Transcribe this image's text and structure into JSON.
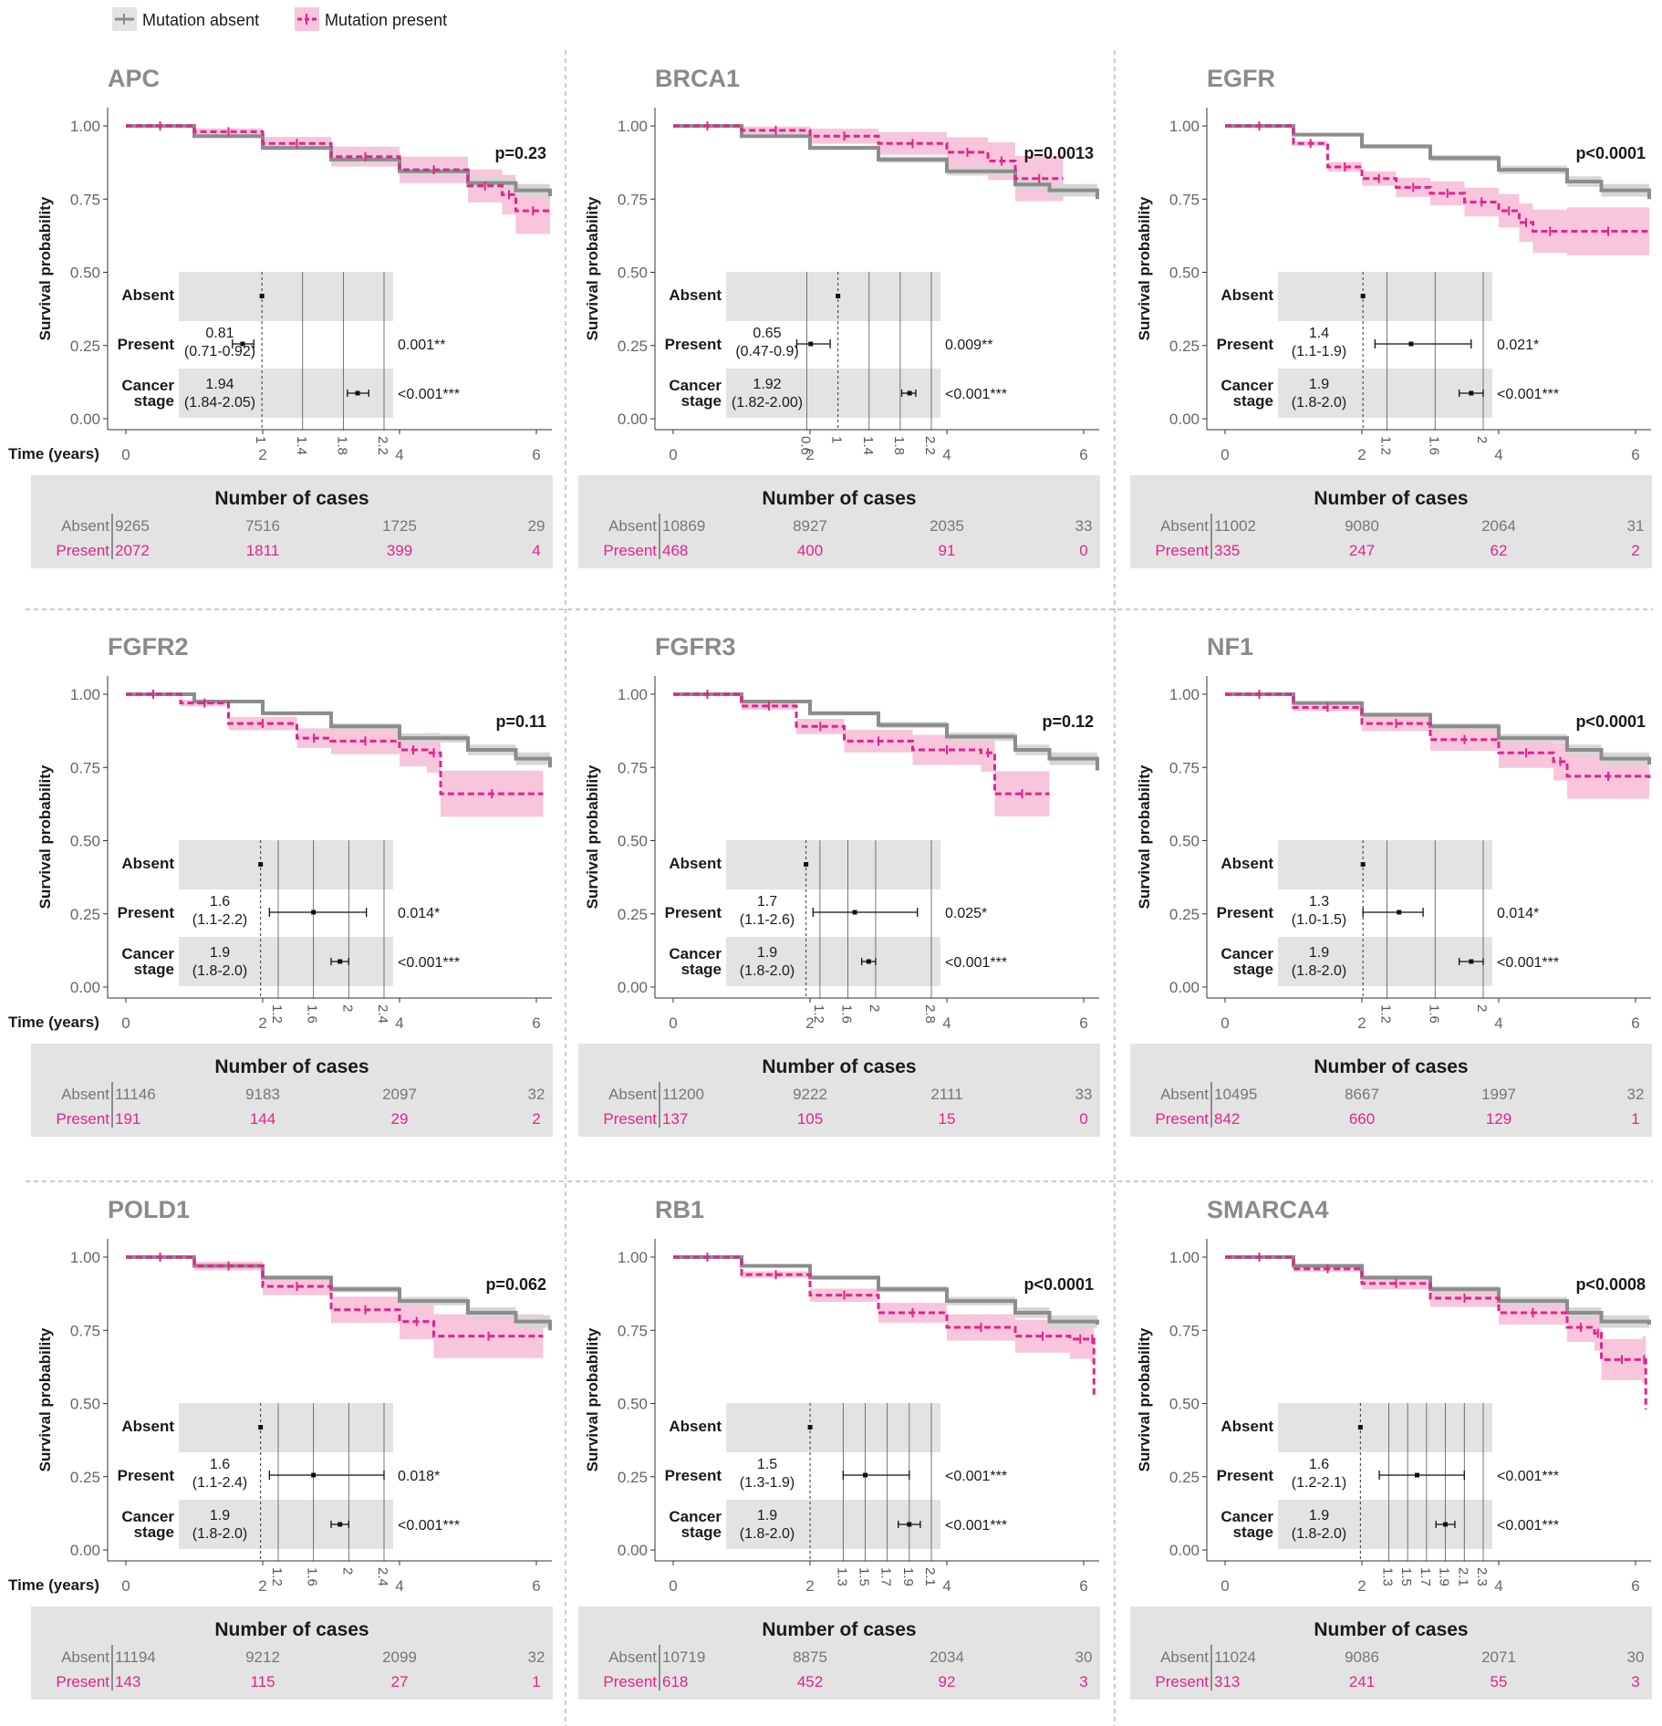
{
  "legend": {
    "absent_label": "Mutation absent",
    "present_label": "Mutation present",
    "absent_color": "#8c8c8c",
    "present_color": "#e0258e"
  },
  "axis": {
    "y_title": "Survival probability",
    "x_title": "Time (years)",
    "y_ticks": [
      "1.00",
      "0.75",
      "0.50",
      "0.25",
      "0.00"
    ],
    "x_ticks": [
      "0",
      "2",
      "4",
      "6"
    ]
  },
  "forest_labels": {
    "absent": "Absent",
    "present": "Present",
    "cancer_line1": "Cancer",
    "cancer_line2": "stage"
  },
  "risk_table": {
    "title": "Number of cases",
    "absent_label": "Absent",
    "present_label": "Present"
  },
  "chart_data": [
    {
      "type": "line",
      "title": "APC",
      "p_value": "p=0.23",
      "xlim": [
        0,
        6.2
      ],
      "ylim": [
        0,
        1
      ],
      "series": [
        {
          "name": "Mutation absent",
          "x": [
            0,
            1,
            2,
            3,
            4,
            5,
            5.7,
            6.2
          ],
          "y": [
            1.0,
            0.965,
            0.925,
            0.885,
            0.845,
            0.805,
            0.78,
            0.76
          ]
        },
        {
          "name": "Mutation present",
          "x": [
            0,
            1,
            2,
            3,
            4,
            5,
            5.5,
            5.7,
            6.2
          ],
          "y": [
            1.0,
            0.98,
            0.94,
            0.895,
            0.85,
            0.795,
            0.765,
            0.71,
            0.7
          ]
        }
      ],
      "forest": {
        "ticks": [
          "1",
          "1.4",
          "1.8",
          "2.2"
        ],
        "present_hr": "0.81",
        "present_ci": "(0.71-0.92)",
        "present_p": "0.001**",
        "stage_hr": "1.94",
        "stage_ci": "(1.84-2.05)",
        "stage_p": "<0.001***"
      },
      "cases": {
        "absent": [
          "9265",
          "7516",
          "1725",
          "29"
        ],
        "present": [
          "2072",
          "1811",
          "399",
          "4"
        ]
      }
    },
    {
      "type": "line",
      "title": "BRCA1",
      "p_value": "p=0.0013",
      "xlim": [
        0,
        6.2
      ],
      "ylim": [
        0,
        1
      ],
      "series": [
        {
          "name": "Mutation absent",
          "x": [
            0,
            1,
            2,
            3,
            4,
            5,
            5.5,
            6.2
          ],
          "y": [
            1.0,
            0.965,
            0.925,
            0.885,
            0.845,
            0.8,
            0.78,
            0.75
          ]
        },
        {
          "name": "Mutation present",
          "x": [
            0,
            1,
            2,
            3,
            4,
            4.6,
            5.0,
            5.7
          ],
          "y": [
            1.0,
            0.985,
            0.965,
            0.94,
            0.91,
            0.88,
            0.82,
            0.82
          ]
        }
      ],
      "forest": {
        "ticks": [
          "0.6",
          "1",
          "1.4",
          "1.8",
          "2.2"
        ],
        "present_hr": "0.65",
        "present_ci": "(0.47-0.9)",
        "present_p": "0.009**",
        "stage_hr": "1.92",
        "stage_ci": "(1.82-2.00)",
        "stage_p": "<0.001***"
      },
      "cases": {
        "absent": [
          "10869",
          "8927",
          "2035",
          "33"
        ],
        "present": [
          "468",
          "400",
          "91",
          "0"
        ]
      }
    },
    {
      "type": "line",
      "title": "EGFR",
      "p_value": "p<0.0001",
      "xlim": [
        0,
        6.2
      ],
      "ylim": [
        0,
        1
      ],
      "series": [
        {
          "name": "Mutation absent",
          "x": [
            0,
            1,
            2,
            3,
            4,
            5,
            5.5,
            6.2
          ],
          "y": [
            1.0,
            0.97,
            0.93,
            0.89,
            0.85,
            0.81,
            0.78,
            0.75
          ]
        },
        {
          "name": "Mutation present",
          "x": [
            0,
            1,
            1.5,
            2,
            2.5,
            3,
            3.5,
            4,
            4.3,
            4.5,
            5,
            6.2
          ],
          "y": [
            1.0,
            0.94,
            0.86,
            0.82,
            0.79,
            0.77,
            0.74,
            0.71,
            0.67,
            0.64,
            0.64,
            0.64
          ]
        }
      ],
      "forest": {
        "ticks": [
          "1.2",
          "1.6",
          "2"
        ],
        "present_hr": "1.4",
        "present_ci": "(1.1-1.9)",
        "present_p": "0.021*",
        "stage_hr": "1.9",
        "stage_ci": "(1.8-2.0)",
        "stage_p": "<0.001***"
      },
      "cases": {
        "absent": [
          "11002",
          "9080",
          "2064",
          "31"
        ],
        "present": [
          "335",
          "247",
          "62",
          "2"
        ]
      }
    },
    {
      "type": "line",
      "title": "FGFR2",
      "p_value": "p=0.11",
      "xlim": [
        0,
        6.2
      ],
      "ylim": [
        0,
        1
      ],
      "series": [
        {
          "name": "Mutation absent",
          "x": [
            0,
            1,
            2,
            3,
            4,
            5,
            5.7,
            6.2
          ],
          "y": [
            1.0,
            0.975,
            0.935,
            0.89,
            0.85,
            0.81,
            0.78,
            0.75
          ]
        },
        {
          "name": "Mutation present",
          "x": [
            0,
            0.8,
            1.5,
            2.5,
            3,
            4,
            4.4,
            4.6,
            6.1
          ],
          "y": [
            1.0,
            0.97,
            0.9,
            0.85,
            0.84,
            0.81,
            0.8,
            0.66,
            0.66
          ]
        }
      ],
      "forest": {
        "ticks": [
          "1.2",
          "1.6",
          "2",
          "2.4"
        ],
        "present_hr": "1.6",
        "present_ci": "(1.1-2.2)",
        "present_p": "0.014*",
        "stage_hr": "1.9",
        "stage_ci": "(1.8-2.0)",
        "stage_p": "<0.001***"
      },
      "cases": {
        "absent": [
          "11146",
          "9183",
          "2097",
          "32"
        ],
        "present": [
          "191",
          "144",
          "29",
          "2"
        ]
      }
    },
    {
      "type": "line",
      "title": "FGFR3",
      "p_value": "p=0.12",
      "xlim": [
        0,
        6.2
      ],
      "ylim": [
        0,
        1
      ],
      "series": [
        {
          "name": "Mutation absent",
          "x": [
            0,
            1,
            2,
            3,
            4,
            5,
            5.5,
            6.2
          ],
          "y": [
            1.0,
            0.975,
            0.935,
            0.895,
            0.855,
            0.81,
            0.78,
            0.74
          ]
        },
        {
          "name": "Mutation present",
          "x": [
            0,
            1,
            1.8,
            2.5,
            3.5,
            4.5,
            4.7,
            5.5
          ],
          "y": [
            1.0,
            0.96,
            0.89,
            0.84,
            0.81,
            0.8,
            0.66,
            0.66
          ]
        }
      ],
      "forest": {
        "ticks": [
          "1.2",
          "1.6",
          "2",
          "2.8"
        ],
        "present_hr": "1.7",
        "present_ci": "(1.1-2.6)",
        "present_p": "0.025*",
        "stage_hr": "1.9",
        "stage_ci": "(1.8-2.0)",
        "stage_p": "<0.001***"
      },
      "cases": {
        "absent": [
          "11200",
          "9222",
          "2111",
          "33"
        ],
        "present": [
          "137",
          "105",
          "15",
          "0"
        ]
      }
    },
    {
      "type": "line",
      "title": "NF1",
      "p_value": "p<0.0001",
      "xlim": [
        0,
        6.2
      ],
      "ylim": [
        0,
        1
      ],
      "series": [
        {
          "name": "Mutation absent",
          "x": [
            0,
            1,
            2,
            3,
            4,
            5,
            5.5,
            6.2
          ],
          "y": [
            1.0,
            0.97,
            0.93,
            0.89,
            0.85,
            0.81,
            0.78,
            0.76
          ]
        },
        {
          "name": "Mutation present",
          "x": [
            0,
            1,
            2,
            3,
            4,
            4.8,
            5.0,
            6.2
          ],
          "y": [
            1.0,
            0.955,
            0.9,
            0.845,
            0.8,
            0.77,
            0.72,
            0.71
          ]
        }
      ],
      "forest": {
        "ticks": [
          "1.2",
          "1.6",
          "2"
        ],
        "present_hr": "1.3",
        "present_ci": "(1.0-1.5)",
        "present_p": "0.014*",
        "stage_hr": "1.9",
        "stage_ci": "(1.8-2.0)",
        "stage_p": "<0.001***"
      },
      "cases": {
        "absent": [
          "10495",
          "8667",
          "1997",
          "32"
        ],
        "present": [
          "842",
          "660",
          "129",
          "1"
        ]
      }
    },
    {
      "type": "line",
      "title": "POLD1",
      "p_value": "p=0.062",
      "xlim": [
        0,
        6.2
      ],
      "ylim": [
        0,
        1
      ],
      "series": [
        {
          "name": "Mutation absent",
          "x": [
            0,
            1,
            2,
            3,
            4,
            5,
            5.7,
            6.2
          ],
          "y": [
            1.0,
            0.97,
            0.93,
            0.89,
            0.85,
            0.81,
            0.78,
            0.75
          ]
        },
        {
          "name": "Mutation present",
          "x": [
            0,
            1,
            2,
            3,
            4,
            4.5,
            6.1
          ],
          "y": [
            1.0,
            0.97,
            0.9,
            0.82,
            0.78,
            0.73,
            0.73
          ]
        }
      ],
      "forest": {
        "ticks": [
          "1.2",
          "1.6",
          "2",
          "2.4"
        ],
        "present_hr": "1.6",
        "present_ci": "(1.1-2.4)",
        "present_p": "0.018*",
        "stage_hr": "1.9",
        "stage_ci": "(1.8-2.0)",
        "stage_p": "<0.001***"
      },
      "cases": {
        "absent": [
          "11194",
          "9212",
          "2099",
          "32"
        ],
        "present": [
          "143",
          "115",
          "27",
          "1"
        ]
      }
    },
    {
      "type": "line",
      "title": "RB1",
      "p_value": "p<0.0001",
      "xlim": [
        0,
        6.2
      ],
      "ylim": [
        0,
        1
      ],
      "series": [
        {
          "name": "Mutation absent",
          "x": [
            0,
            1,
            2,
            3,
            4,
            5,
            5.5,
            6.2
          ],
          "y": [
            1.0,
            0.97,
            0.93,
            0.89,
            0.85,
            0.81,
            0.78,
            0.77
          ]
        },
        {
          "name": "Mutation present",
          "x": [
            0,
            1,
            2,
            3,
            4,
            5,
            5.8,
            6.1,
            6.15
          ],
          "y": [
            1.0,
            0.94,
            0.87,
            0.81,
            0.76,
            0.73,
            0.72,
            0.72,
            0.53
          ]
        }
      ],
      "forest": {
        "ticks": [
          "1.3",
          "1.5",
          "1.7",
          "1.9",
          "2.1"
        ],
        "present_hr": "1.5",
        "present_ci": "(1.3-1.9)",
        "present_p": "<0.001***",
        "stage_hr": "1.9",
        "stage_ci": "(1.8-2.0)",
        "stage_p": "<0.001***"
      },
      "cases": {
        "absent": [
          "10719",
          "8875",
          "2034",
          "30"
        ],
        "present": [
          "618",
          "452",
          "92",
          "3"
        ]
      }
    },
    {
      "type": "line",
      "title": "SMARCA4",
      "p_value": "p<0.0008",
      "xlim": [
        0,
        6.2
      ],
      "ylim": [
        0,
        1
      ],
      "series": [
        {
          "name": "Mutation absent",
          "x": [
            0,
            1,
            2,
            3,
            4,
            5,
            5.5,
            6.2
          ],
          "y": [
            1.0,
            0.97,
            0.93,
            0.89,
            0.85,
            0.81,
            0.78,
            0.77
          ]
        },
        {
          "name": "Mutation present",
          "x": [
            0,
            1,
            2,
            3,
            4,
            5,
            5.4,
            5.5,
            6.1,
            6.15
          ],
          "y": [
            1.0,
            0.96,
            0.91,
            0.86,
            0.81,
            0.76,
            0.74,
            0.65,
            0.65,
            0.48
          ]
        }
      ],
      "forest": {
        "ticks": [
          "1.3",
          "1.5",
          "1.7",
          "1.9",
          "2.1",
          "2.3"
        ],
        "present_hr": "1.6",
        "present_ci": "(1.2-2.1)",
        "present_p": "<0.001***",
        "stage_hr": "1.9",
        "stage_ci": "(1.8-2.0)",
        "stage_p": "<0.001***"
      },
      "cases": {
        "absent": [
          "11024",
          "9086",
          "2071",
          "30"
        ],
        "present": [
          "313",
          "241",
          "55",
          "3"
        ]
      }
    }
  ]
}
